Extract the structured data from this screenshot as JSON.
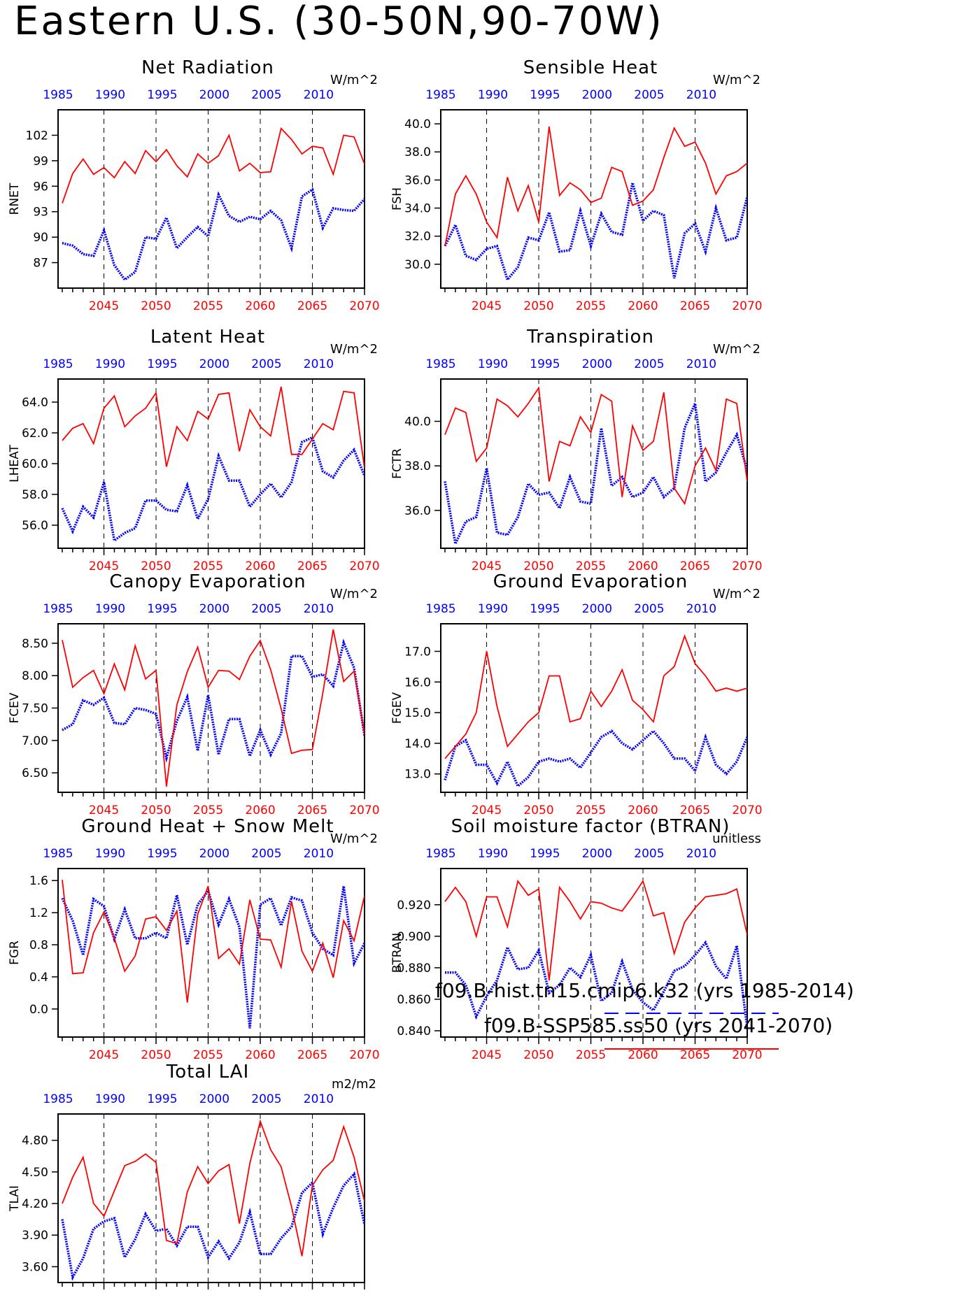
{
  "title": "Eastern U.S. (30-50N,90-70W)",
  "colors": {
    "hist": "#0000ff",
    "ssp": "#ff0000",
    "grid": "#000000"
  },
  "legend": [
    {
      "label": "f09.B-hist.tn15.cmip6.k32 (yrs 1985-2014)",
      "color": "#0000ff",
      "style": "dashed"
    },
    {
      "label": "f09.B-SSP585.ss50 (yrs 2041-2070)",
      "color": "#ff0000",
      "style": "solid"
    }
  ],
  "top_axis_ticks": [
    "1985",
    "1990",
    "1995",
    "2000",
    "2005",
    "2010"
  ],
  "bottom_axis_ticks": [
    "2045",
    "2050",
    "2055",
    "2060",
    "2065",
    "2070"
  ],
  "chart_data": [
    {
      "type": "line",
      "title": "Net Radiation",
      "ylabel": "RNET",
      "units": "W/m^2",
      "ylim": [
        84,
        105
      ],
      "yticks": [
        "87",
        "90",
        "93",
        "96",
        "99",
        "102"
      ],
      "series": [
        {
          "values": [
            89.3,
            89.0,
            88.0,
            87.8,
            90.8,
            86.7,
            85.0,
            85.9,
            90.0,
            89.8,
            92.3,
            88.7,
            90.0,
            91.2,
            90.1,
            95.0,
            92.5,
            91.8,
            92.4,
            92.1,
            93.1,
            92.0,
            88.7,
            94.8,
            95.6,
            91.1,
            93.4,
            93.2,
            93.1,
            94.5
          ]
        },
        {
          "values": [
            94.0,
            97.5,
            99.2,
            97.4,
            98.2,
            97.0,
            98.9,
            97.5,
            100.2,
            98.9,
            100.3,
            98.4,
            97.1,
            99.8,
            98.7,
            99.6,
            102.0,
            97.8,
            98.7,
            97.6,
            97.7,
            102.8,
            101.5,
            99.8,
            100.7,
            100.5,
            97.4,
            102.0,
            101.8,
            98.6
          ]
        }
      ]
    },
    {
      "type": "line",
      "title": "Sensible Heat",
      "ylabel": "FSH",
      "units": "W/m^2",
      "ylim": [
        28.3,
        41.0
      ],
      "yticks": [
        "30.0",
        "32.0",
        "34.0",
        "36.0",
        "38.0",
        "40.0"
      ],
      "series": [
        {
          "values": [
            31.3,
            32.8,
            30.6,
            30.3,
            31.1,
            31.3,
            28.9,
            29.8,
            31.9,
            31.7,
            33.7,
            30.9,
            31.0,
            33.8,
            31.3,
            33.6,
            32.3,
            32.1,
            35.8,
            33.1,
            33.8,
            33.5,
            29.0,
            32.2,
            32.9,
            30.9,
            34.0,
            31.7,
            31.9,
            34.8
          ]
        },
        {
          "values": [
            31.3,
            35.0,
            36.3,
            35.0,
            33.0,
            31.9,
            36.2,
            33.8,
            35.6,
            33.0,
            39.8,
            34.9,
            35.8,
            35.3,
            34.4,
            34.7,
            36.9,
            36.6,
            34.2,
            34.5,
            35.3,
            37.6,
            39.7,
            38.4,
            38.7,
            37.2,
            35.0,
            36.3,
            36.6,
            37.2
          ]
        }
      ]
    },
    {
      "type": "line",
      "title": "Latent Heat",
      "ylabel": "LHEAT",
      "units": "W/m^2",
      "ylim": [
        54.5,
        65.5
      ],
      "yticks": [
        "56.0",
        "58.0",
        "60.0",
        "62.0",
        "64.0"
      ],
      "series": [
        {
          "values": [
            57.1,
            55.6,
            57.2,
            56.5,
            58.8,
            55.0,
            55.5,
            55.8,
            57.6,
            57.6,
            57.0,
            56.9,
            58.6,
            56.4,
            57.7,
            60.5,
            58.9,
            58.9,
            57.2,
            58.0,
            58.7,
            57.8,
            58.8,
            61.4,
            61.7,
            59.5,
            59.1,
            60.2,
            60.9,
            59.2
          ]
        },
        {
          "values": [
            61.5,
            62.3,
            62.6,
            61.3,
            63.6,
            64.4,
            62.4,
            63.1,
            63.6,
            64.6,
            59.8,
            62.4,
            61.5,
            63.4,
            62.9,
            64.5,
            64.6,
            60.8,
            63.5,
            62.4,
            61.8,
            65.0,
            60.6,
            60.6,
            61.6,
            62.6,
            62.2,
            64.7,
            64.6,
            59.7
          ]
        }
      ]
    },
    {
      "type": "line",
      "title": "Transpiration",
      "ylabel": "FCTR",
      "units": "W/m^2",
      "ylim": [
        34.3,
        41.9
      ],
      "yticks": [
        "36.0",
        "38.0",
        "40.0"
      ],
      "series": [
        {
          "values": [
            37.3,
            34.5,
            35.5,
            35.7,
            37.9,
            35.0,
            34.9,
            35.7,
            37.2,
            36.7,
            36.8,
            36.1,
            37.5,
            36.4,
            36.3,
            39.7,
            37.1,
            37.5,
            36.6,
            36.8,
            37.5,
            36.6,
            37.0,
            39.7,
            40.8,
            37.3,
            37.7,
            38.6,
            39.4,
            37.8
          ]
        },
        {
          "values": [
            39.4,
            40.6,
            40.4,
            38.2,
            38.8,
            41.0,
            40.7,
            40.2,
            40.8,
            41.5,
            37.3,
            39.1,
            38.9,
            40.2,
            39.5,
            41.2,
            40.9,
            36.6,
            39.8,
            38.7,
            39.1,
            41.3,
            37.0,
            36.3,
            38.0,
            38.8,
            37.8,
            41.0,
            40.8,
            37.3
          ]
        }
      ]
    },
    {
      "type": "line",
      "title": "Canopy Evaporation",
      "ylabel": "FCEV",
      "units": "W/m^2",
      "ylim": [
        6.2,
        8.8
      ],
      "yticks": [
        "6.50",
        "7.00",
        "7.50",
        "8.00",
        "8.50"
      ],
      "series": [
        {
          "values": [
            7.16,
            7.25,
            7.62,
            7.55,
            7.66,
            7.27,
            7.25,
            7.5,
            7.47,
            7.41,
            6.73,
            7.3,
            7.67,
            6.84,
            7.7,
            6.78,
            7.33,
            7.33,
            6.76,
            7.16,
            6.78,
            7.11,
            8.3,
            8.3,
            7.98,
            8.02,
            7.84,
            8.51,
            8.12,
            7.07
          ]
        },
        {
          "values": [
            8.55,
            7.82,
            7.97,
            8.08,
            7.72,
            8.18,
            7.78,
            8.46,
            7.95,
            8.08,
            6.29,
            7.55,
            8.06,
            8.44,
            7.82,
            8.08,
            8.07,
            7.94,
            8.3,
            8.54,
            8.09,
            7.49,
            6.8,
            6.85,
            6.86,
            7.73,
            8.71,
            7.91,
            8.07,
            7.1
          ]
        }
      ]
    },
    {
      "type": "line",
      "title": "Ground Evaporation",
      "ylabel": "FGEV",
      "units": "W/m^2",
      "ylim": [
        12.4,
        17.9
      ],
      "yticks": [
        "13.0",
        "14.0",
        "15.0",
        "16.0",
        "17.0"
      ],
      "series": [
        {
          "values": [
            12.8,
            13.9,
            14.1,
            13.3,
            13.3,
            12.7,
            13.4,
            12.6,
            12.9,
            13.4,
            13.5,
            13.4,
            13.5,
            13.2,
            13.7,
            14.2,
            14.4,
            14.0,
            13.8,
            14.1,
            14.4,
            14.0,
            13.5,
            13.5,
            13.1,
            14.2,
            13.3,
            13.0,
            13.4,
            14.2
          ]
        },
        {
          "values": [
            13.5,
            13.9,
            14.3,
            15.0,
            17.0,
            15.2,
            13.9,
            14.3,
            14.7,
            15.0,
            16.2,
            16.2,
            14.7,
            14.8,
            15.7,
            15.2,
            15.7,
            16.4,
            15.4,
            15.1,
            14.7,
            16.2,
            16.5,
            17.5,
            16.6,
            16.2,
            15.7,
            15.8,
            15.7,
            15.8
          ]
        }
      ]
    },
    {
      "type": "line",
      "title": "Ground Heat + Snow Melt",
      "ylabel": "FGR",
      "units": "W/m^2",
      "ylim": [
        -0.35,
        1.75
      ],
      "yticks": [
        "0.0",
        "0.4",
        "0.8",
        "1.2",
        "1.6"
      ],
      "series": [
        {
          "values": [
            1.38,
            1.1,
            0.67,
            1.37,
            1.28,
            0.87,
            1.24,
            0.88,
            0.88,
            0.95,
            0.88,
            1.42,
            0.8,
            1.3,
            1.47,
            1.05,
            1.37,
            1.02,
            -0.24,
            1.3,
            1.38,
            1.04,
            1.39,
            1.35,
            0.95,
            0.75,
            0.67,
            1.53,
            0.57,
            0.82
          ]
        },
        {
          "values": [
            1.61,
            0.44,
            0.45,
            0.95,
            1.21,
            0.88,
            0.47,
            0.66,
            1.12,
            1.15,
            0.98,
            1.22,
            0.08,
            1.18,
            1.53,
            0.63,
            0.75,
            0.56,
            1.36,
            0.87,
            0.86,
            0.52,
            1.34,
            0.72,
            0.47,
            0.82,
            0.39,
            1.1,
            0.85,
            1.41
          ]
        }
      ]
    },
    {
      "type": "line",
      "title": "Soil moisture factor (BTRAN)",
      "ylabel": "BTRAN",
      "units": "unitless",
      "ylim": [
        0.836,
        0.943
      ],
      "yticks": [
        "0.840",
        "0.860",
        "0.880",
        "0.900",
        "0.920"
      ],
      "series": [
        {
          "values": [
            0.877,
            0.877,
            0.869,
            0.849,
            0.862,
            0.872,
            0.893,
            0.879,
            0.88,
            0.891,
            0.864,
            0.869,
            0.88,
            0.874,
            0.888,
            0.859,
            0.864,
            0.884,
            0.866,
            0.858,
            0.853,
            0.865,
            0.878,
            0.881,
            0.888,
            0.896,
            0.881,
            0.873,
            0.894,
            0.842
          ]
        },
        {
          "values": [
            0.922,
            0.931,
            0.922,
            0.9,
            0.925,
            0.925,
            0.906,
            0.935,
            0.926,
            0.93,
            0.872,
            0.931,
            0.922,
            0.911,
            0.922,
            0.921,
            0.918,
            0.916,
            0.925,
            0.935,
            0.913,
            0.915,
            0.889,
            0.909,
            0.918,
            0.925,
            0.926,
            0.927,
            0.93,
            0.901
          ]
        }
      ]
    },
    {
      "type": "line",
      "title": "Total LAI",
      "ylabel": "TLAI",
      "units": "m2/m2",
      "ylim": [
        3.45,
        5.05
      ],
      "yticks": [
        "3.60",
        "3.90",
        "4.20",
        "4.50",
        "4.80"
      ],
      "series": [
        {
          "values": [
            4.05,
            3.5,
            3.68,
            3.96,
            4.03,
            4.06,
            3.69,
            3.86,
            4.1,
            3.94,
            3.96,
            3.8,
            3.98,
            3.98,
            3.69,
            3.84,
            3.68,
            3.83,
            4.12,
            3.72,
            3.72,
            3.87,
            3.98,
            4.3,
            4.4,
            3.91,
            4.16,
            4.37,
            4.48,
            4.0
          ]
        },
        {
          "values": [
            4.2,
            4.45,
            4.64,
            4.2,
            4.08,
            4.32,
            4.56,
            4.6,
            4.67,
            4.59,
            3.85,
            3.82,
            4.31,
            4.55,
            4.39,
            4.51,
            4.57,
            4.01,
            4.58,
            4.98,
            4.71,
            4.55,
            4.17,
            3.7,
            4.37,
            4.52,
            4.61,
            4.93,
            4.64,
            4.22
          ]
        }
      ]
    }
  ]
}
